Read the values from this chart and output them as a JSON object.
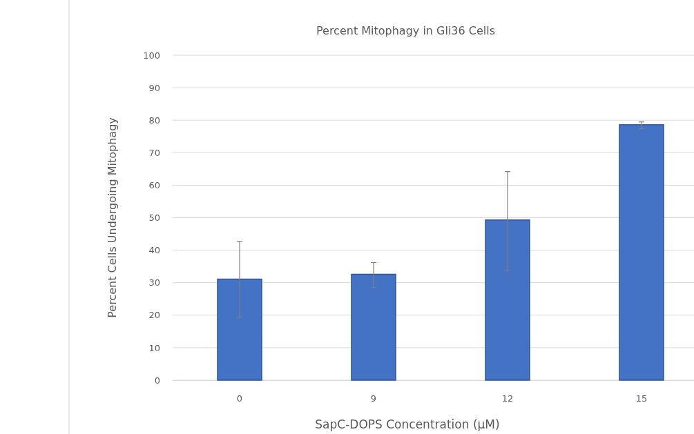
{
  "chart_data": {
    "type": "bar",
    "title": "Percent Mitophagy in Gli36 Cells",
    "xlabel": "SapC-DOPS Concentration (µM)",
    "ylabel": "Percent Cells Undergoing Mitophagy",
    "categories": [
      "0",
      "9",
      "12",
      "15"
    ],
    "values": [
      31.1,
      32.6,
      49.3,
      78.6
    ],
    "errors": [
      [
        19.3,
        42.7
      ],
      [
        28.5,
        36.2
      ],
      [
        33.7,
        64.2
      ],
      [
        77.4,
        79.5
      ]
    ],
    "color": "#4472c4",
    "ylim": [
      0,
      100
    ],
    "yticks": [
      0,
      10,
      20,
      30,
      40,
      50,
      60,
      70,
      80,
      90,
      100
    ],
    "grid": "y"
  }
}
